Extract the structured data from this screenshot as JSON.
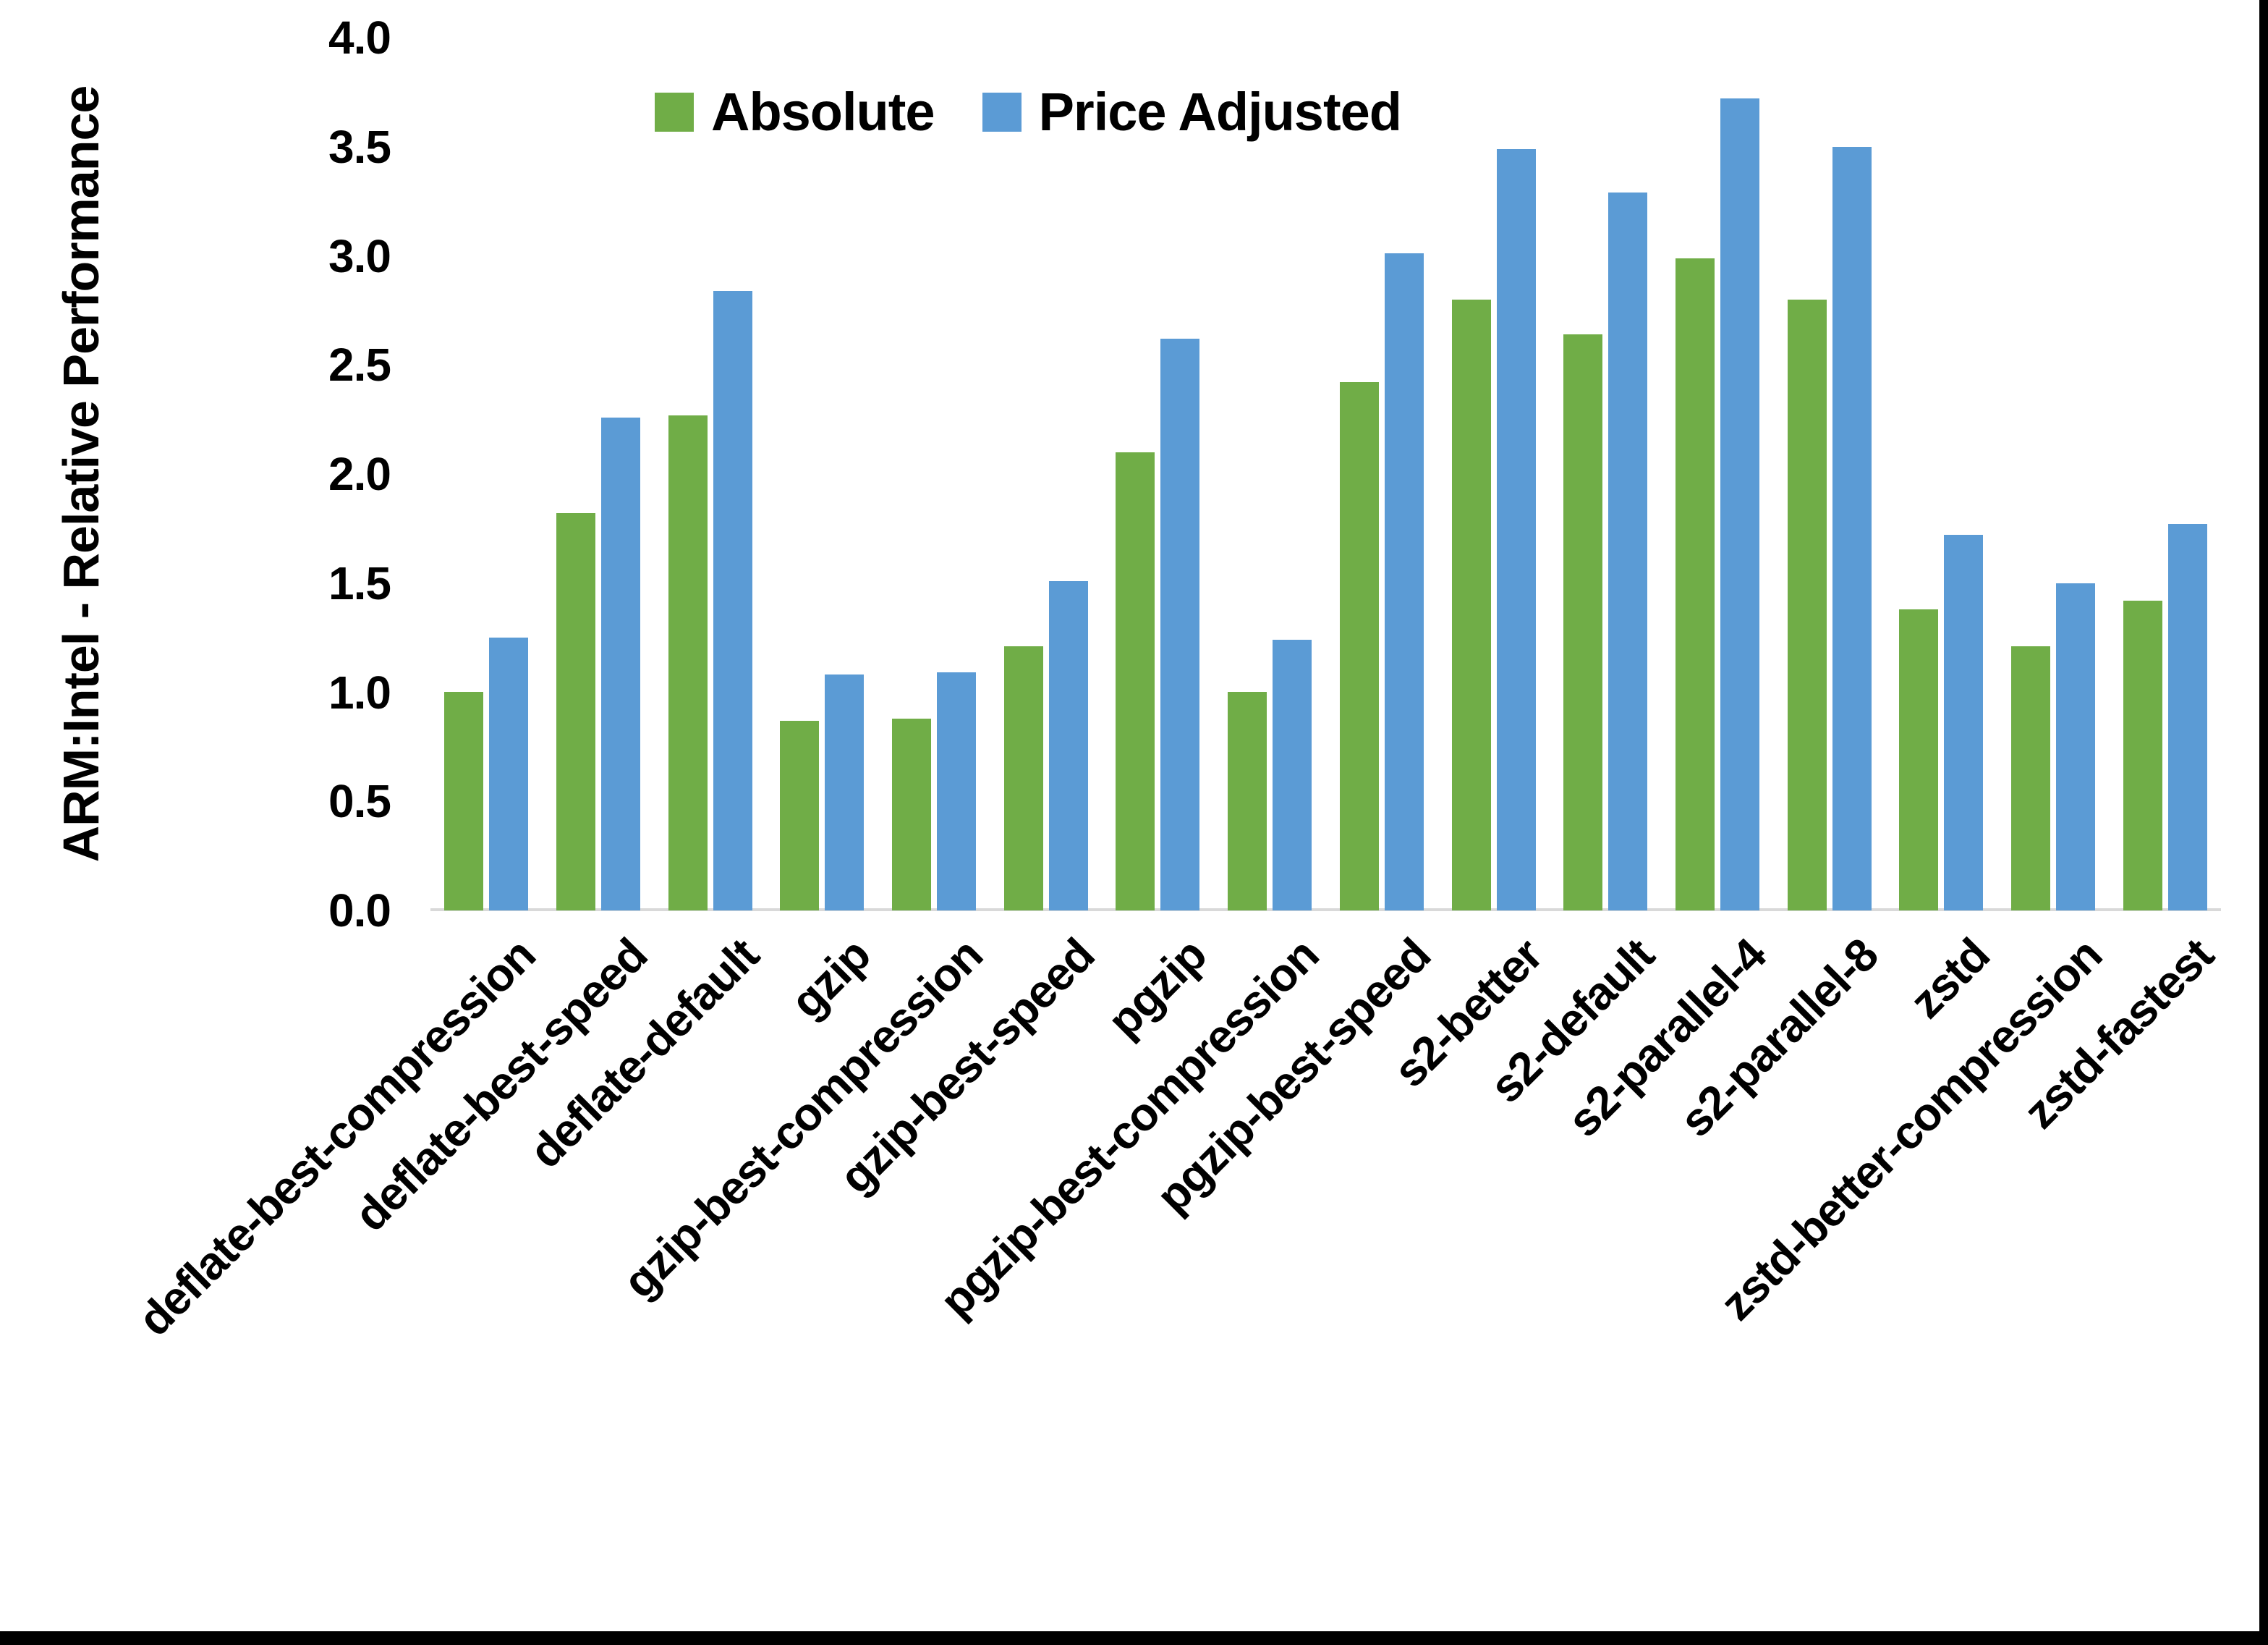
{
  "page": {
    "background_color": "#ffffff",
    "window_edge_color": "#000000"
  },
  "chart_data": {
    "type": "bar",
    "title": "",
    "xlabel": "",
    "ylabel": "ARM:Intel - Relative Performance",
    "ylim": [
      0,
      4
    ],
    "ytick_labels": [
      "0.0",
      "0.5",
      "1.0",
      "1.5",
      "2.0",
      "2.5",
      "3.0",
      "3.5",
      "4.0"
    ],
    "grid": false,
    "axis_line_color": "#d9d9d9",
    "legend_position": "top",
    "categories": [
      "deflate-best-compression",
      "deflate-best-speed",
      "deflate-default",
      "gzip",
      "gzip-best-compression",
      "gzip-best-speed",
      "pgzip",
      "pgzip-best-compression",
      "pgzip-best-speed",
      "s2-better",
      "s2-default",
      "s2-parallel-4",
      "s2-parallel-8",
      "zstd",
      "zstd-better-compression",
      "zstd-fastest"
    ],
    "series": [
      {
        "name": "Absolute",
        "color": "#70AD47",
        "values": [
          1.0,
          1.82,
          2.27,
          0.87,
          0.88,
          1.21,
          2.1,
          1.0,
          2.42,
          2.8,
          2.64,
          2.99,
          2.8,
          1.38,
          1.21,
          1.42
        ]
      },
      {
        "name": "Price Adjusted",
        "color": "#5B9BD5",
        "values": [
          1.25,
          2.26,
          2.84,
          1.08,
          1.09,
          1.51,
          2.62,
          1.24,
          3.01,
          3.49,
          3.29,
          3.72,
          3.5,
          1.72,
          1.5,
          1.77
        ]
      }
    ]
  }
}
